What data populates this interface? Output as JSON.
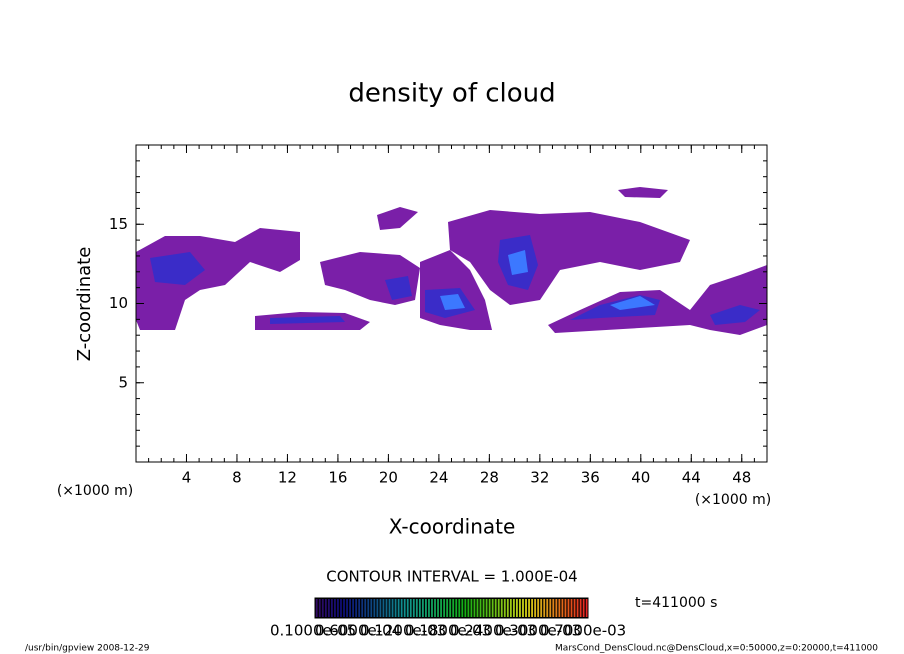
{
  "chart_data": {
    "type": "contour",
    "title": "density of cloud",
    "x_label": "X-coordinate",
    "y_label": "Z-coordinate",
    "x_unit": "(×1000 m)",
    "xlim": [
      0,
      50
    ],
    "ylim": [
      0,
      20
    ],
    "xticks": [
      4,
      8,
      12,
      16,
      20,
      24,
      28,
      32,
      36,
      40,
      44,
      48
    ],
    "yticks": [
      5,
      10,
      15
    ],
    "contour_interval": "CONTOUR INTERVAL = 1.000E-04",
    "time_label": "t=411000 s",
    "colorbar_labels": [
      "0.1000e-05",
      "0.6000e-04",
      "0.1200e-03",
      "0.1800e-03",
      "0.2400e-03",
      "0.3000e-03",
      "0.7000e-03"
    ],
    "footer_left": "/usr/bin/gpview   2008-12-29",
    "footer_right": "MarsCond_DensCloud.nc@DensCloud,x=0:50000,z=0:20000,t=411000"
  }
}
